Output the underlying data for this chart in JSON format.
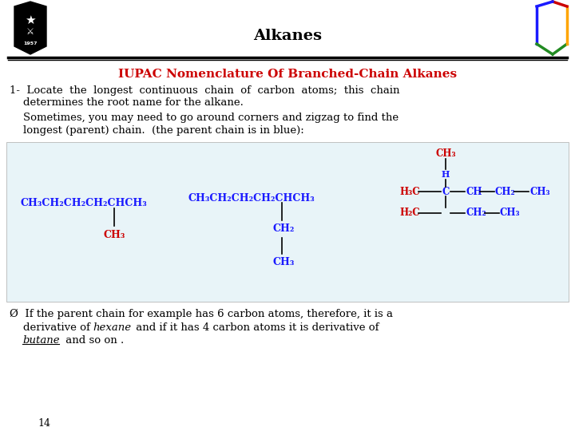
{
  "title": "Alkanes",
  "slide_bg": "#ffffff",
  "header_title": "IUPAC Nomenclature Of Branched-Chain Alkanes",
  "header_color": "#cc0000",
  "body_color": "#000000",
  "blue_color": "#1a1aff",
  "red_color": "#cc0000",
  "line1": "1-  Locate  the  longest  continuous  chain  of  carbon  atoms;  this  chain",
  "line2": "    determines the root name for the alkane.",
  "line3": "    Sometimes, you may need to go around corners and zigzag to find the",
  "line4": "    longest (parent) chain.  (the parent chain is in blue):",
  "box_bg": "#e8f4f8",
  "mol1_main": "CH₃CH₂CH₂CH₂CHCH₃",
  "mol1_branch": "CH₃",
  "mol2_main": "CH₃CH₂CH₂CH₂CHCH₃",
  "mol2_branch1": "CH₂",
  "mol2_branch2": "CH₃",
  "footer_line1": "Ø  If the parent chain for example has 6 carbon atoms, therefore, it is a",
  "footer_line2": "    derivative of hexane and if it has 4 carbon atoms it is derivative of",
  "footer_line3": "    butane and so on .",
  "page_num": "14"
}
